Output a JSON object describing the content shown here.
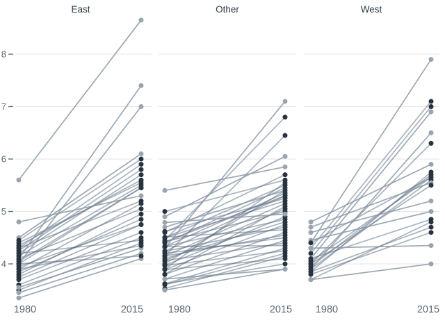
{
  "chart": {
    "background": "#ffffff",
    "title_color": "#2c3a49",
    "axis_label_color": "#5c6874",
    "grid_color": "#e4e6e8",
    "dark_dot_color": "#27333f",
    "light_dot_color": "#9aa4ad",
    "dark_line_color": "#54687b",
    "light_line_color": "#8b99a6"
  },
  "chart_data": {
    "type": "line",
    "subtype": "slopegraph-small-multiples",
    "x_categories": [
      "1980",
      "2015"
    ],
    "yticks": [
      8,
      7,
      6,
      5,
      4
    ],
    "ylim": [
      3.2,
      8.9
    ],
    "grid": true,
    "legend": "none",
    "panels": [
      {
        "title": "East",
        "lines": [
          [
            5.6,
            8.65,
            "light"
          ],
          [
            4.1,
            7.4,
            "light"
          ],
          [
            4.0,
            7.0,
            "light"
          ],
          [
            4.5,
            6.1,
            "light"
          ],
          [
            4.45,
            6.0,
            "dark"
          ],
          [
            4.3,
            5.9,
            "dark"
          ],
          [
            4.25,
            5.8,
            "dark"
          ],
          [
            4.2,
            5.7,
            "dark"
          ],
          [
            4.35,
            5.6,
            "dark"
          ],
          [
            4.15,
            5.5,
            "dark"
          ],
          [
            4.05,
            5.45,
            "dark"
          ],
          [
            4.8,
            5.3,
            "light"
          ],
          [
            3.9,
            5.15,
            "dark"
          ],
          [
            4.1,
            5.05,
            "dark"
          ],
          [
            3.8,
            4.95,
            "dark"
          ],
          [
            3.85,
            4.85,
            "dark"
          ],
          [
            3.75,
            4.75,
            "dark"
          ],
          [
            4.0,
            5.45,
            "dark"
          ],
          [
            3.6,
            4.5,
            "dark"
          ],
          [
            3.5,
            4.4,
            "dark"
          ],
          [
            3.55,
            4.3,
            "light"
          ],
          [
            3.45,
            4.2,
            "light"
          ],
          [
            3.35,
            4.1,
            "light"
          ],
          [
            4.4,
            5.55,
            "dark"
          ],
          [
            4.2,
            4.45,
            "dark"
          ],
          [
            3.95,
            4.75,
            "dark"
          ],
          [
            3.7,
            4.6,
            "dark"
          ],
          [
            4.3,
            5.2,
            "dark"
          ],
          [
            3.9,
            4.35,
            "dark"
          ],
          [
            4.0,
            4.15,
            "dark"
          ]
        ]
      },
      {
        "title": "Other",
        "lines": [
          [
            5.4,
            5.85,
            "light"
          ],
          [
            4.3,
            7.1,
            "light"
          ],
          [
            4.45,
            6.8,
            "dark"
          ],
          [
            4.15,
            6.45,
            "dark"
          ],
          [
            4.9,
            6.05,
            "light"
          ],
          [
            4.6,
            5.7,
            "dark"
          ],
          [
            5.0,
            5.6,
            "dark"
          ],
          [
            4.5,
            5.5,
            "dark"
          ],
          [
            4.4,
            5.45,
            "dark"
          ],
          [
            4.33,
            5.35,
            "dark"
          ],
          [
            4.24,
            5.3,
            "dark"
          ],
          [
            4.5,
            5.2,
            "dark"
          ],
          [
            4.15,
            5.15,
            "dark"
          ],
          [
            4.06,
            5.05,
            "dark"
          ],
          [
            4.42,
            5.0,
            "dark"
          ],
          [
            3.97,
            4.9,
            "dark"
          ],
          [
            4.33,
            4.85,
            "dark"
          ],
          [
            3.89,
            4.75,
            "dark"
          ],
          [
            4.24,
            4.7,
            "dark"
          ],
          [
            3.8,
            4.6,
            "dark"
          ],
          [
            4.15,
            4.55,
            "dark"
          ],
          [
            3.71,
            4.45,
            "dark"
          ],
          [
            4.06,
            4.4,
            "dark"
          ],
          [
            3.62,
            4.3,
            "dark"
          ],
          [
            3.97,
            4.25,
            "dark"
          ],
          [
            3.53,
            4.15,
            "dark"
          ],
          [
            3.89,
            4.1,
            "dark"
          ],
          [
            3.62,
            4.0,
            "dark"
          ],
          [
            3.71,
            3.9,
            "light"
          ],
          [
            4.7,
            5.4,
            "light"
          ],
          [
            4.62,
            5.25,
            "dark"
          ],
          [
            4.79,
            4.95,
            "light"
          ],
          [
            3.8,
            5.1,
            "dark"
          ],
          [
            3.9,
            5.55,
            "dark"
          ],
          [
            4.0,
            5.4,
            "dark"
          ],
          [
            4.1,
            4.8,
            "dark"
          ],
          [
            4.2,
            4.5,
            "dark"
          ],
          [
            4.33,
            4.35,
            "dark"
          ],
          [
            3.6,
            4.2,
            "dark"
          ],
          [
            3.5,
            3.9,
            "light"
          ],
          [
            4.42,
            5.3,
            "dark"
          ],
          [
            4.51,
            4.65,
            "dark"
          ]
        ]
      },
      {
        "title": "West",
        "lines": [
          [
            4.4,
            7.9,
            "light"
          ],
          [
            4.3,
            7.1,
            "dark"
          ],
          [
            4.2,
            7.0,
            "dark"
          ],
          [
            4.1,
            6.9,
            "light"
          ],
          [
            3.9,
            6.5,
            "light"
          ],
          [
            4.0,
            6.3,
            "dark"
          ],
          [
            4.8,
            5.9,
            "light"
          ],
          [
            3.85,
            5.75,
            "dark"
          ],
          [
            3.95,
            5.7,
            "dark"
          ],
          [
            4.05,
            5.65,
            "dark"
          ],
          [
            3.9,
            5.6,
            "dark"
          ],
          [
            4.7,
            5.55,
            "light"
          ],
          [
            4.6,
            5.2,
            "light"
          ],
          [
            4.45,
            5.0,
            "light"
          ],
          [
            3.7,
            4.8,
            "dark"
          ],
          [
            3.85,
            4.7,
            "dark"
          ],
          [
            4.3,
            4.35,
            "light"
          ],
          [
            3.7,
            4.0,
            "light"
          ],
          [
            4.4,
            5.65,
            "dark"
          ],
          [
            4.1,
            4.85,
            "dark"
          ],
          [
            3.8,
            4.6,
            "dark"
          ],
          [
            4.0,
            5.5,
            "dark"
          ]
        ]
      }
    ]
  }
}
